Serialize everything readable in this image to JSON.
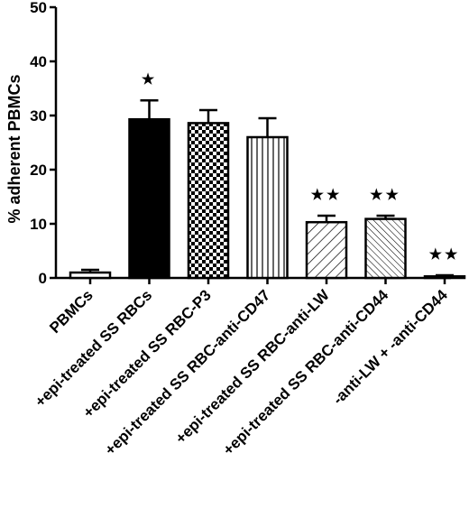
{
  "chart_data": {
    "type": "bar",
    "ylabel": "% adherent PBMCs",
    "xlabel": "",
    "ylim": [
      0,
      50
    ],
    "yticks": [
      0,
      10,
      20,
      30,
      40,
      50
    ],
    "categories": [
      "PBMCs",
      "+epi-treated SS RBCs",
      "+epi-treated SS RBC-P3",
      "+epi-treated SS RBC-anti-CD47",
      "+epi-treated SS RBC-anti-LW",
      "+epi-treated SS RBC-anti-CD44",
      "-anti-LW + -anti-CD44"
    ],
    "values": [
      1.0,
      29.3,
      28.6,
      26.0,
      10.3,
      10.9,
      0.3
    ],
    "errors": [
      0.5,
      3.5,
      2.4,
      3.5,
      1.2,
      0.6,
      0.2
    ],
    "patterns": [
      "white",
      "black",
      "checker",
      "vertical-lines",
      "diagonal-lines",
      "diagonal-lines-dense",
      "white"
    ],
    "annotations": [
      "",
      "★",
      "",
      "",
      "★★",
      "★★",
      "★★"
    ],
    "grid": false,
    "legend": "none"
  }
}
